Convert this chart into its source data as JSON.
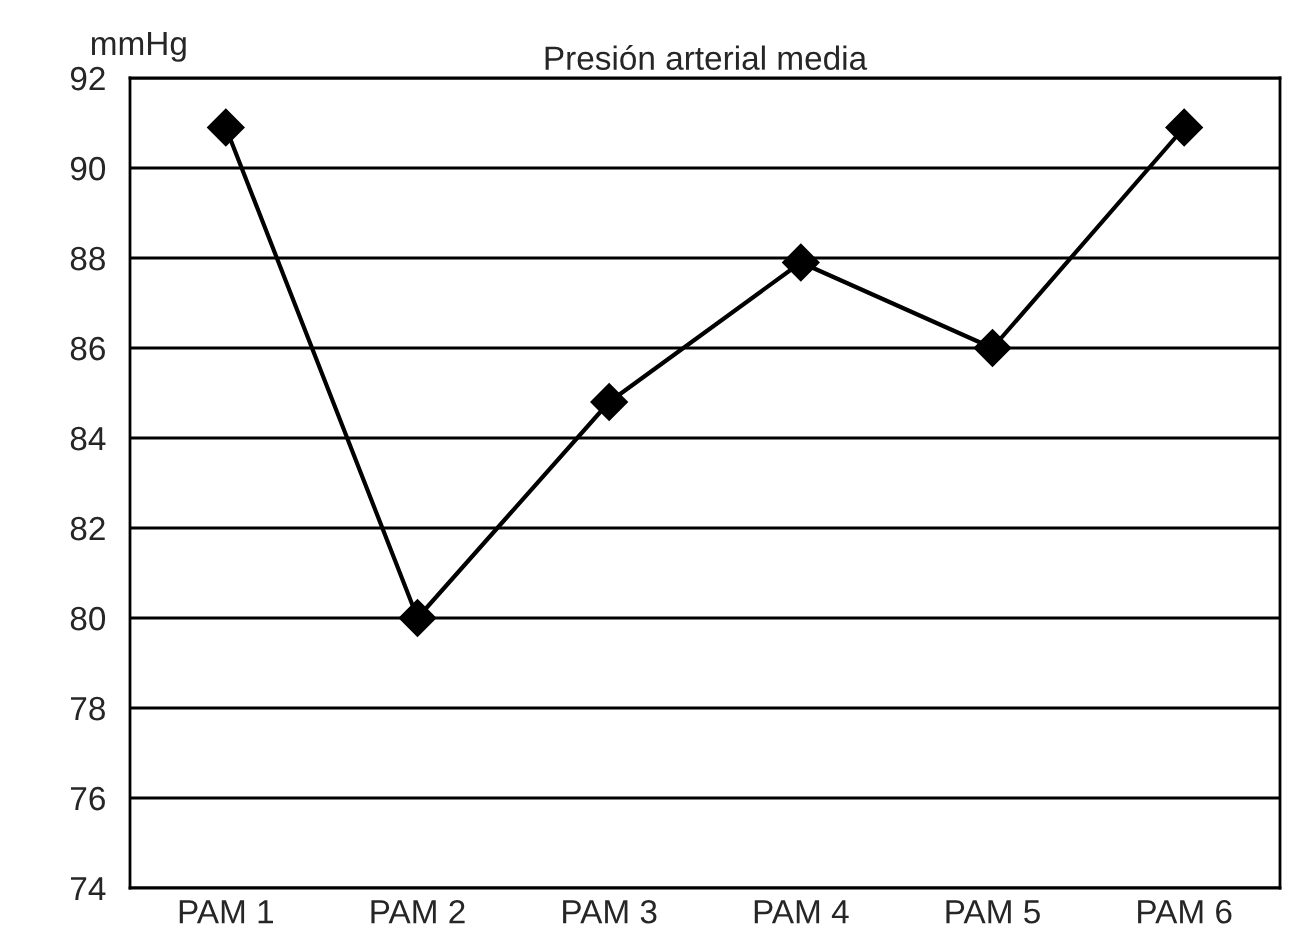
{
  "chart_data": {
    "type": "line",
    "title": "Presión arterial media",
    "ylabel": "mmHg",
    "categories": [
      "PAM 1",
      "PAM 2",
      "PAM 3",
      "PAM 4",
      "PAM 5",
      "PAM 6"
    ],
    "series": [
      {
        "color": "#000000",
        "values": [
          90.9,
          80.0,
          84.8,
          87.9,
          86.0,
          90.9
        ]
      }
    ],
    "ylim": [
      74,
      92
    ],
    "yticks": [
      74,
      76,
      78,
      80,
      82,
      84,
      86,
      88,
      90,
      92
    ],
    "grid": "y",
    "marker": "diamond",
    "line_style": "solid"
  }
}
